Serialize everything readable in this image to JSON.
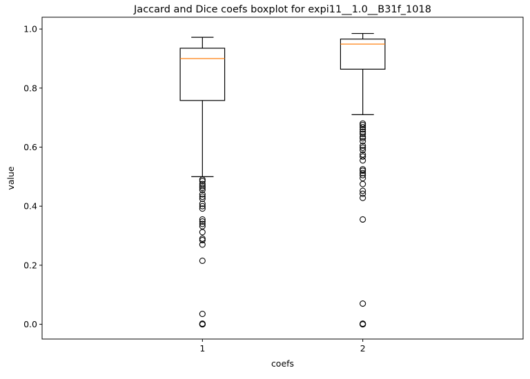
{
  "chart_data": {
    "type": "boxplot",
    "title": "Jaccard and Dice coefs boxplot for expi11__1.0__B31f_1018",
    "xlabel": "coefs",
    "ylabel": "value",
    "categories": [
      "1",
      "2"
    ],
    "ylim": [
      -0.05,
      1.04
    ],
    "yticks": [
      0.0,
      0.2,
      0.4,
      0.6,
      0.8,
      1.0
    ],
    "ytick_labels": [
      "0.0",
      "0.2",
      "0.4",
      "0.6",
      "0.8",
      "1.0"
    ],
    "grid": false,
    "colors": {
      "box": "#000000",
      "median": "#ff7f0e"
    },
    "boxes": [
      {
        "name": "1",
        "whisker_low": 0.5,
        "q1": 0.758,
        "median": 0.9,
        "q3": 0.935,
        "whisker_high": 0.972,
        "outliers": [
          0.49,
          0.485,
          0.475,
          0.468,
          0.462,
          0.455,
          0.44,
          0.432,
          0.425,
          0.408,
          0.4,
          0.392,
          0.355,
          0.348,
          0.34,
          0.332,
          0.312,
          0.29,
          0.285,
          0.27,
          0.215,
          0.035,
          0.002,
          0.0,
          0.0,
          0.0
        ]
      },
      {
        "name": "2",
        "whisker_low": 0.71,
        "q1": 0.864,
        "median": 0.949,
        "q3": 0.966,
        "whisker_high": 0.985,
        "outliers": [
          0.68,
          0.675,
          0.668,
          0.66,
          0.652,
          0.645,
          0.635,
          0.63,
          0.62,
          0.605,
          0.598,
          0.59,
          0.575,
          0.568,
          0.555,
          0.525,
          0.52,
          0.512,
          0.505,
          0.495,
          0.475,
          0.452,
          0.442,
          0.428,
          0.355,
          0.07,
          0.002,
          0.0,
          0.0
        ]
      }
    ]
  }
}
